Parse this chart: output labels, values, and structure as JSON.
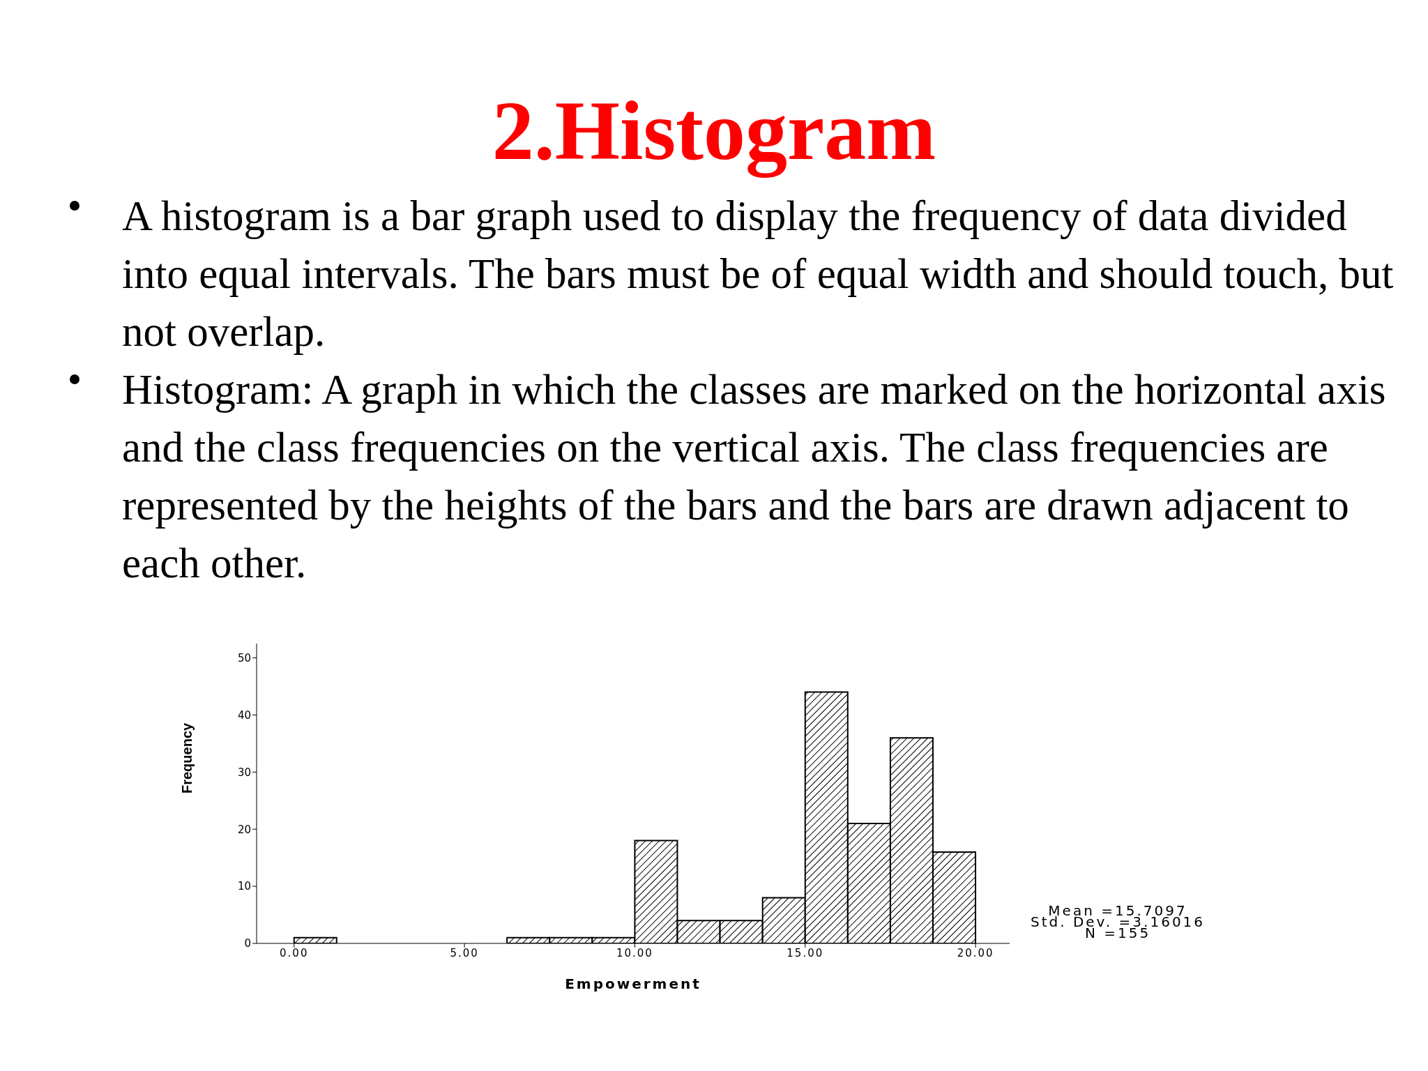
{
  "chart_data": {
    "type": "histogram",
    "title": "2.Histogram",
    "subtitle": "A histogram is a bar graph used to display the frequency of data divided into equal intervals. The bars must be of equal width and should touch, but not overlap.",
    "annotations": [
      "Histogram: A graph in which the classes are marked on the horizontal axis and the class frequencies on the vertical axis. The class frequencies are represented by the heights of the bars and the bars are drawn adjacent to each other.",
      "Mean =15.7097",
      "Std. Dev. =3.16016",
      "N =155"
    ],
    "xlabel": "Empowerment",
    "ylabel": "Frequency",
    "bins": [
      0,
      1.25,
      2.5,
      3.75,
      5,
      6.25,
      7.5,
      8.75,
      10,
      11.25,
      12.5,
      13.75,
      15,
      16.25,
      17.5,
      18.75,
      20
    ],
    "values": [
      1,
      0,
      0,
      0,
      0,
      1,
      1,
      1,
      18,
      4,
      4,
      8,
      44,
      21,
      36,
      16
    ],
    "color": "#000000",
    "xlim": [
      -1.1,
      21.0
    ],
    "xticks": [
      {
        "value": 0,
        "label": "0.00"
      },
      {
        "value": 5,
        "label": "5.00"
      },
      {
        "value": 10,
        "label": "10.00"
      },
      {
        "value": 15,
        "label": "15.00"
      },
      {
        "value": 20,
        "label": "20.00"
      }
    ],
    "ylim": [
      0,
      52.5
    ],
    "yticks": [
      0,
      10,
      20,
      30,
      40,
      50
    ]
  }
}
